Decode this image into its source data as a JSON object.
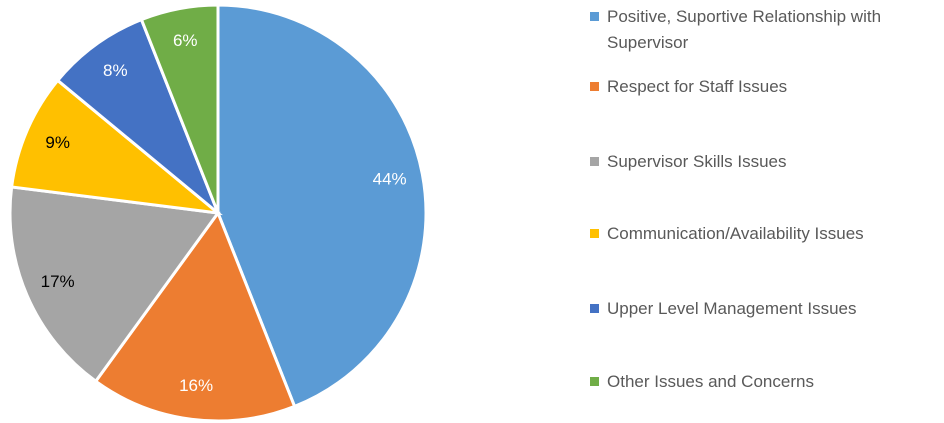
{
  "chart_data": {
    "type": "pie",
    "categories": [
      "Positive, Suportive Relationship with Supervisor",
      "Respect for Staff Issues",
      "Supervisor Skills Issues",
      "Communication/Availability Issues",
      "Upper Level Management Issues",
      "Other Issues and Concerns"
    ],
    "values": [
      44,
      16,
      17,
      9,
      8,
      6
    ],
    "value_labels": [
      "44%",
      "16%",
      "17%",
      "9%",
      "8%",
      "6%"
    ],
    "colors": [
      "#5b9bd5",
      "#ed7d31",
      "#a5a5a5",
      "#ffc000",
      "#4472c4",
      "#70ad47"
    ],
    "label_colors": [
      "#ffffff",
      "#ffffff",
      "#000000",
      "#000000",
      "#ffffff",
      "#ffffff"
    ],
    "legend": "right"
  }
}
